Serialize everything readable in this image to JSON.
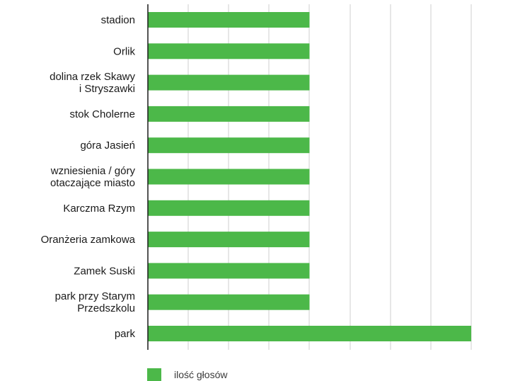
{
  "chart_data": {
    "type": "bar",
    "orientation": "horizontal",
    "categories": [
      [
        "stadion"
      ],
      [
        "Orlik"
      ],
      [
        "dolina rzek Skawy",
        "i Stryszawki"
      ],
      [
        "stok Cholerne"
      ],
      [
        "góra Jasień"
      ],
      [
        "wzniesienia / góry",
        "otaczające miasto"
      ],
      [
        "Karczma Rzym"
      ],
      [
        "Oranżeria zamkowa"
      ],
      [
        "Zamek Suski"
      ],
      [
        "park przy Starym",
        "Przedszkolu"
      ],
      [
        "park"
      ]
    ],
    "series": [
      {
        "name": "ilość głosów",
        "color": "#4cb849",
        "values": [
          1,
          1,
          1,
          1,
          1,
          1,
          1,
          1,
          1,
          1,
          2
        ]
      }
    ],
    "xlim": [
      0,
      2
    ],
    "grid": true,
    "legend_position": "bottom-left"
  }
}
